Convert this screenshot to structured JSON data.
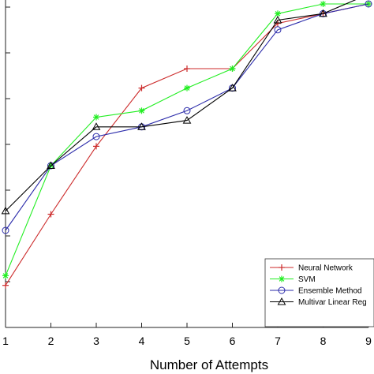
{
  "chart_data": {
    "type": "line",
    "title": "",
    "xlabel": "Number of Attempts",
    "ylabel": "",
    "x": [
      1,
      2,
      3,
      4,
      5,
      6,
      7,
      8,
      9
    ],
    "xlim": [
      1,
      9
    ],
    "ylim": [
      0,
      1
    ],
    "grid": false,
    "legend_position": "bottom-right",
    "series": [
      {
        "name": "Neural Network",
        "color": "#cc2a2a",
        "marker": "plus",
        "values": [
          0.13,
          0.35,
          0.56,
          0.74,
          0.8,
          0.8,
          0.94,
          0.97,
          1.0
        ]
      },
      {
        "name": "SVM",
        "color": "#22ee22",
        "marker": "asterisk",
        "values": [
          0.16,
          0.5,
          0.65,
          0.67,
          0.74,
          0.8,
          0.97,
          1.0,
          1.0
        ]
      },
      {
        "name": "Ensemble Method",
        "color": "#2b2baa",
        "marker": "circle",
        "values": [
          0.3,
          0.5,
          0.59,
          0.62,
          0.67,
          0.74,
          0.92,
          0.97,
          1.0
        ]
      },
      {
        "name": "Multivar Linear Reg",
        "color": "#000000",
        "marker": "triangle",
        "values": [
          0.36,
          0.5,
          0.62,
          0.62,
          0.64,
          0.74,
          0.95,
          0.97,
          1.03
        ]
      }
    ]
  }
}
